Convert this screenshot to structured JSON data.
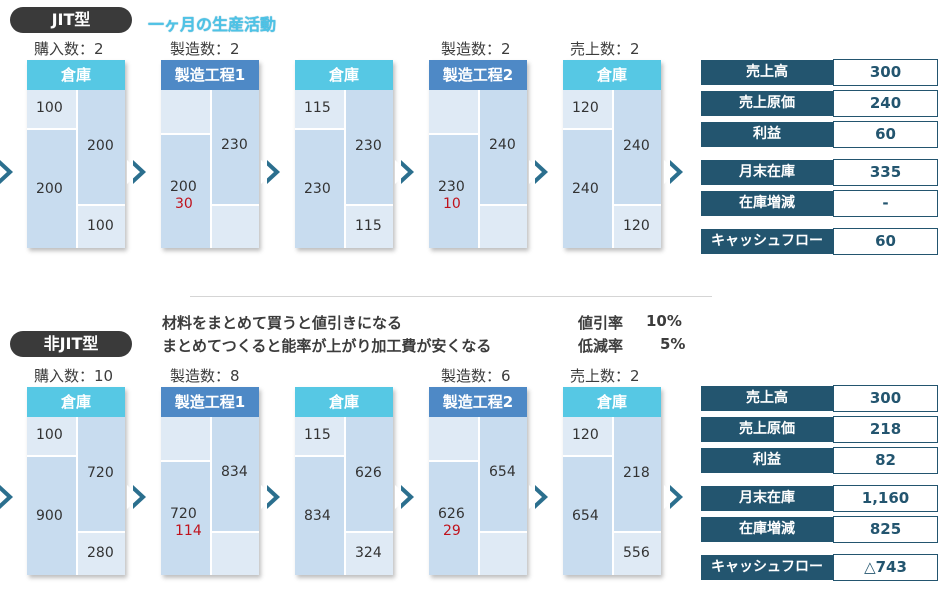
{
  "jit": {
    "badge": "JIT型",
    "subtitle": "一ヶ月の生産活動",
    "captions": [
      "購入数：2",
      "製造数：2",
      "製造数：2",
      "売上数：2"
    ],
    "boxes": [
      {
        "title": "倉庫",
        "kind": "warehouse",
        "left_top": "100",
        "left_bottom": "200",
        "right_top": "200",
        "right_bottom": "100"
      },
      {
        "title": "製造工程1",
        "kind": "process",
        "left_main": "200",
        "left_red": "30",
        "right": "230"
      },
      {
        "title": "倉庫",
        "kind": "warehouse",
        "left_top": "115",
        "left_bottom": "230",
        "right_top": "230",
        "right_bottom": "115"
      },
      {
        "title": "製造工程2",
        "kind": "process",
        "left_main": "230",
        "left_red": "10",
        "right": "240"
      },
      {
        "title": "倉庫",
        "kind": "warehouse",
        "left_top": "120",
        "left_bottom": "240",
        "right_top": "240",
        "right_bottom": "120"
      }
    ],
    "financials": [
      {
        "label": "売上高",
        "value": "300"
      },
      {
        "label": "売上原価",
        "value": "240"
      },
      {
        "label": "利益",
        "value": "60"
      },
      {
        "label": "月末在庫",
        "value": "335"
      },
      {
        "label": "在庫増減",
        "value": "-"
      },
      {
        "label": "キャッシュフロー",
        "value": "60"
      }
    ]
  },
  "nonjit": {
    "badge": "非JIT型",
    "note1": "材料をまとめて買うと値引きになる",
    "note2": "まとめてつくると能率が上がり加工費が安くなる",
    "rate1_label": "値引率",
    "rate1_value": "10%",
    "rate2_label": "低減率",
    "rate2_value": "5%",
    "captions": [
      "購入数：10",
      "製造数：8",
      "製造数：6",
      "売上数：2"
    ],
    "boxes": [
      {
        "title": "倉庫",
        "kind": "warehouse",
        "left_top": "100",
        "left_bottom": "900",
        "right_top": "720",
        "right_bottom": "280"
      },
      {
        "title": "製造工程1",
        "kind": "process",
        "left_main": "720",
        "left_red": "114",
        "right": "834"
      },
      {
        "title": "倉庫",
        "kind": "warehouse",
        "left_top": "115",
        "left_bottom": "834",
        "right_top": "626",
        "right_bottom": "324"
      },
      {
        "title": "製造工程2",
        "kind": "process",
        "left_main": "626",
        "left_red": "29",
        "right": "654"
      },
      {
        "title": "倉庫",
        "kind": "warehouse",
        "left_top": "120",
        "left_bottom": "654",
        "right_top": "218",
        "right_bottom": "556"
      }
    ],
    "financials": [
      {
        "label": "売上高",
        "value": "300"
      },
      {
        "label": "売上原価",
        "value": "218"
      },
      {
        "label": "利益",
        "value": "82"
      },
      {
        "label": "月末在庫",
        "value": "1,160"
      },
      {
        "label": "在庫増減",
        "value": "825"
      },
      {
        "label": "キャッシュフロー",
        "value": "△743"
      }
    ]
  },
  "colors": {
    "warehouse_header": "#56c8e4",
    "process_header": "#4e89c6",
    "arrow": "#2b6f8e",
    "fin_label": "#23556f",
    "red_value": "#c0121c"
  }
}
